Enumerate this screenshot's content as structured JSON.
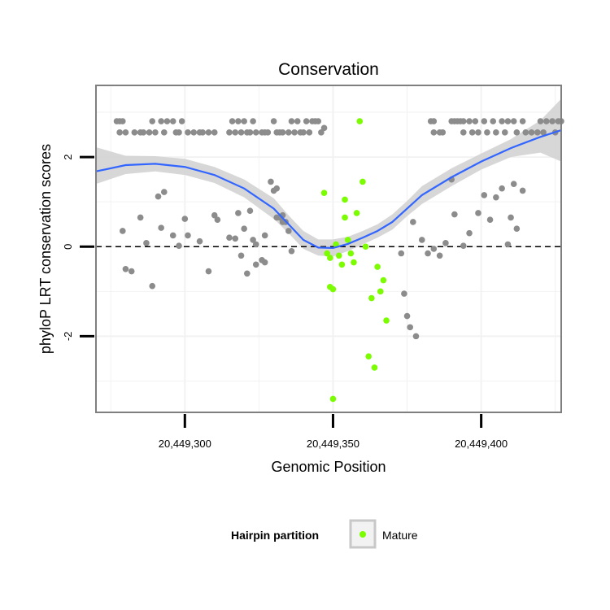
{
  "chart_data": {
    "type": "scatter",
    "title": "Conservation",
    "xlabel": "Genomic Position",
    "ylabel": "phyloP LRT conservation scores",
    "xlim": [
      20449270,
      20449427
    ],
    "ylim": [
      -3.7,
      3.6
    ],
    "grid": true,
    "x_ticks": [
      {
        "value": 20449300,
        "label": "20,449,300"
      },
      {
        "value": 20449350,
        "label": "20,449,350"
      },
      {
        "value": 20449400,
        "label": "20,449,400"
      }
    ],
    "y_ticks": [
      {
        "value": -2,
        "label": "-2"
      },
      {
        "value": 0,
        "label": "0"
      },
      {
        "value": 2,
        "label": "2"
      }
    ],
    "reference_line": {
      "y": 0,
      "style": "dashed"
    },
    "legend": {
      "title": "Hairpin partition",
      "position": "bottom",
      "entries": [
        {
          "label": "Mature",
          "color": "#7cfc00"
        }
      ]
    },
    "colors": {
      "other": "#8c8c8c",
      "mature": "#7cfc00",
      "smooth": "#3366ff",
      "ribbon": "#d3d3d3",
      "grid": "#f2f2f2",
      "border": "#7f7f7f"
    },
    "series": [
      {
        "name": "Other",
        "points": [
          [
            20449278,
            2.8
          ],
          [
            20449279,
            2.8
          ],
          [
            20449280,
            2.55
          ],
          [
            20449283,
            2.55
          ],
          [
            20449285,
            2.55
          ],
          [
            20449286,
            2.55
          ],
          [
            20449288,
            2.55
          ],
          [
            20449289,
            2.8
          ],
          [
            20449290,
            2.55
          ],
          [
            20449292,
            2.8
          ],
          [
            20449293,
            2.55
          ],
          [
            20449294,
            2.8
          ],
          [
            20449296,
            2.8
          ],
          [
            20449297,
            2.55
          ],
          [
            20449298,
            2.55
          ],
          [
            20449299,
            2.8
          ],
          [
            20449301,
            2.55
          ],
          [
            20449303,
            2.55
          ],
          [
            20449305,
            2.55
          ],
          [
            20449306,
            2.55
          ],
          [
            20449308,
            2.55
          ],
          [
            20449310,
            2.55
          ],
          [
            20449315,
            2.55
          ],
          [
            20449316,
            2.8
          ],
          [
            20449317,
            2.55
          ],
          [
            20449318,
            2.8
          ],
          [
            20449319,
            2.55
          ],
          [
            20449320,
            2.8
          ],
          [
            20449321,
            2.55
          ],
          [
            20449322,
            2.55
          ],
          [
            20449323,
            2.8
          ],
          [
            20449324,
            2.55
          ],
          [
            20449326,
            2.55
          ],
          [
            20449327,
            2.55
          ],
          [
            20449328,
            2.55
          ],
          [
            20449330,
            2.8
          ],
          [
            20449331,
            2.55
          ],
          [
            20449332,
            2.55
          ],
          [
            20449333,
            2.55
          ],
          [
            20449335,
            2.55
          ],
          [
            20449336,
            2.8
          ],
          [
            20449337,
            2.55
          ],
          [
            20449338,
            2.8
          ],
          [
            20449339,
            2.55
          ],
          [
            20449340,
            2.55
          ],
          [
            20449341,
            2.8
          ],
          [
            20449342,
            2.55
          ],
          [
            20449343,
            2.8
          ],
          [
            20449344,
            2.8
          ],
          [
            20449345,
            2.8
          ],
          [
            20449346,
            2.55
          ],
          [
            20449347,
            2.65
          ],
          [
            20449278,
            2.55
          ],
          [
            20449277,
            2.8
          ],
          [
            20449383,
            2.8
          ],
          [
            20449384,
            2.8
          ],
          [
            20449384,
            2.55
          ],
          [
            20449386,
            2.55
          ],
          [
            20449387,
            2.55
          ],
          [
            20449390,
            2.8
          ],
          [
            20449391,
            2.8
          ],
          [
            20449392,
            2.8
          ],
          [
            20449393,
            2.8
          ],
          [
            20449394,
            2.8
          ],
          [
            20449394,
            2.55
          ],
          [
            20449396,
            2.8
          ],
          [
            20449397,
            2.55
          ],
          [
            20449398,
            2.8
          ],
          [
            20449399,
            2.55
          ],
          [
            20449401,
            2.8
          ],
          [
            20449402,
            2.55
          ],
          [
            20449404,
            2.8
          ],
          [
            20449405,
            2.55
          ],
          [
            20449407,
            2.8
          ],
          [
            20449408,
            2.55
          ],
          [
            20449409,
            2.8
          ],
          [
            20449411,
            2.8
          ],
          [
            20449412,
            2.55
          ],
          [
            20449414,
            2.8
          ],
          [
            20449415,
            2.55
          ],
          [
            20449417,
            2.55
          ],
          [
            20449419,
            2.55
          ],
          [
            20449420,
            2.8
          ],
          [
            20449421,
            2.55
          ],
          [
            20449422,
            2.8
          ],
          [
            20449424,
            2.8
          ],
          [
            20449425,
            2.55
          ],
          [
            20449426,
            2.8
          ],
          [
            20449427,
            2.8
          ],
          [
            20449279,
            0.35
          ],
          [
            20449280,
            -0.5
          ],
          [
            20449282,
            -0.55
          ],
          [
            20449285,
            0.65
          ],
          [
            20449287,
            0.08
          ],
          [
            20449289,
            -0.88
          ],
          [
            20449291,
            1.12
          ],
          [
            20449292,
            0.42
          ],
          [
            20449293,
            1.22
          ],
          [
            20449296,
            0.25
          ],
          [
            20449298,
            0.02
          ],
          [
            20449300,
            0.62
          ],
          [
            20449301,
            0.25
          ],
          [
            20449305,
            0.12
          ],
          [
            20449308,
            -0.55
          ],
          [
            20449310,
            0.7
          ],
          [
            20449311,
            0.6
          ],
          [
            20449315,
            0.2
          ],
          [
            20449317,
            0.18
          ],
          [
            20449318,
            0.75
          ],
          [
            20449319,
            -0.2
          ],
          [
            20449320,
            0.4
          ],
          [
            20449321,
            -0.6
          ],
          [
            20449322,
            0.8
          ],
          [
            20449323,
            0.15
          ],
          [
            20449324,
            -0.4
          ],
          [
            20449324,
            0.05
          ],
          [
            20449326,
            -0.3
          ],
          [
            20449327,
            -0.35
          ],
          [
            20449327,
            0.25
          ],
          [
            20449329,
            1.45
          ],
          [
            20449330,
            1.25
          ],
          [
            20449331,
            1.3
          ],
          [
            20449331,
            0.65
          ],
          [
            20449332,
            0.65
          ],
          [
            20449333,
            0.55
          ],
          [
            20449333,
            0.7
          ],
          [
            20449334,
            0.55
          ],
          [
            20449335,
            0.35
          ],
          [
            20449336,
            -0.1
          ],
          [
            20449373,
            -0.15
          ],
          [
            20449374,
            -1.05
          ],
          [
            20449375,
            -1.55
          ],
          [
            20449376,
            -1.8
          ],
          [
            20449377,
            0.55
          ],
          [
            20449378,
            -2.0
          ],
          [
            20449380,
            0.15
          ],
          [
            20449382,
            -0.15
          ],
          [
            20449384,
            -0.05
          ],
          [
            20449386,
            -0.2
          ],
          [
            20449388,
            0.08
          ],
          [
            20449390,
            1.5
          ],
          [
            20449391,
            0.72
          ],
          [
            20449394,
            0.02
          ],
          [
            20449396,
            0.3
          ],
          [
            20449399,
            0.75
          ],
          [
            20449401,
            1.15
          ],
          [
            20449403,
            0.6
          ],
          [
            20449405,
            1.1
          ],
          [
            20449407,
            1.3
          ],
          [
            20449409,
            0.05
          ],
          [
            20449410,
            0.65
          ],
          [
            20449411,
            1.4
          ],
          [
            20449412,
            0.4
          ],
          [
            20449414,
            1.25
          ]
        ]
      },
      {
        "name": "Mature",
        "points": [
          [
            20449347,
            1.2
          ],
          [
            20449348,
            -0.15
          ],
          [
            20449349,
            -0.25
          ],
          [
            20449349,
            -0.9
          ],
          [
            20449350,
            -0.95
          ],
          [
            20449350,
            -3.4
          ],
          [
            20449351,
            0.05
          ],
          [
            20449352,
            -0.2
          ],
          [
            20449353,
            -0.4
          ],
          [
            20449354,
            0.65
          ],
          [
            20449354,
            1.05
          ],
          [
            20449355,
            0.15
          ],
          [
            20449356,
            -0.15
          ],
          [
            20449357,
            -0.35
          ],
          [
            20449358,
            0.75
          ],
          [
            20449359,
            2.8
          ],
          [
            20449360,
            1.45
          ],
          [
            20449361,
            0.0
          ],
          [
            20449362,
            -2.45
          ],
          [
            20449363,
            -1.15
          ],
          [
            20449364,
            -2.7
          ],
          [
            20449365,
            -0.45
          ],
          [
            20449366,
            -1.0
          ],
          [
            20449367,
            -0.75
          ],
          [
            20449368,
            -1.65
          ]
        ]
      }
    ],
    "smooth": {
      "x": [
        20449270,
        20449280,
        20449290,
        20449300,
        20449310,
        20449320,
        20449330,
        20449335,
        20449340,
        20449345,
        20449350,
        20449355,
        20449360,
        20449365,
        20449370,
        20449375,
        20449380,
        20449390,
        20449400,
        20449410,
        20449420,
        20449427
      ],
      "y": [
        1.68,
        1.82,
        1.85,
        1.78,
        1.6,
        1.3,
        0.85,
        0.5,
        0.15,
        -0.02,
        -0.03,
        0.06,
        0.2,
        0.35,
        0.55,
        0.85,
        1.15,
        1.55,
        1.9,
        2.2,
        2.45,
        2.6
      ],
      "lower": [
        1.4,
        1.62,
        1.68,
        1.6,
        1.42,
        1.1,
        0.62,
        0.3,
        -0.05,
        -0.2,
        -0.22,
        -0.1,
        0.05,
        0.2,
        0.38,
        0.68,
        0.95,
        1.35,
        1.72,
        2.0,
        2.1,
        1.9
      ],
      "upper": [
        2.22,
        2.03,
        2.02,
        1.96,
        1.78,
        1.5,
        1.08,
        0.7,
        0.35,
        0.16,
        0.16,
        0.22,
        0.35,
        0.5,
        0.72,
        1.02,
        1.35,
        1.75,
        2.08,
        2.4,
        2.82,
        3.3
      ]
    }
  }
}
